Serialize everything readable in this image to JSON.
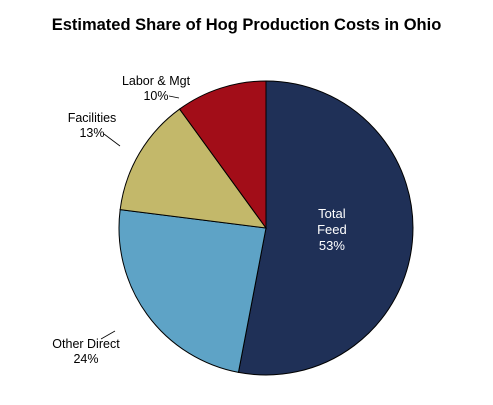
{
  "chart_data": {
    "type": "pie",
    "title": "Estimated Share of Hog Production Costs in Ohio",
    "slices": [
      {
        "name": "Total Feed",
        "lines": [
          "Total",
          "Feed"
        ],
        "value": 53,
        "label": "53%",
        "color": "#1f3057"
      },
      {
        "name": "Other Direct",
        "lines": [
          "Other Direct"
        ],
        "value": 24,
        "label": "24%",
        "color": "#5ea3c6"
      },
      {
        "name": "Facilities",
        "lines": [
          "Facilities"
        ],
        "value": 13,
        "label": "13%",
        "color": "#c3b86a"
      },
      {
        "name": "Labor & Mgt",
        "lines": [
          "Labor & Mgt"
        ],
        "value": 10,
        "label": "10%",
        "color": "#a20d18"
      }
    ],
    "start_angle": "12 o'clock",
    "direction": "clockwise",
    "legend": "none"
  }
}
